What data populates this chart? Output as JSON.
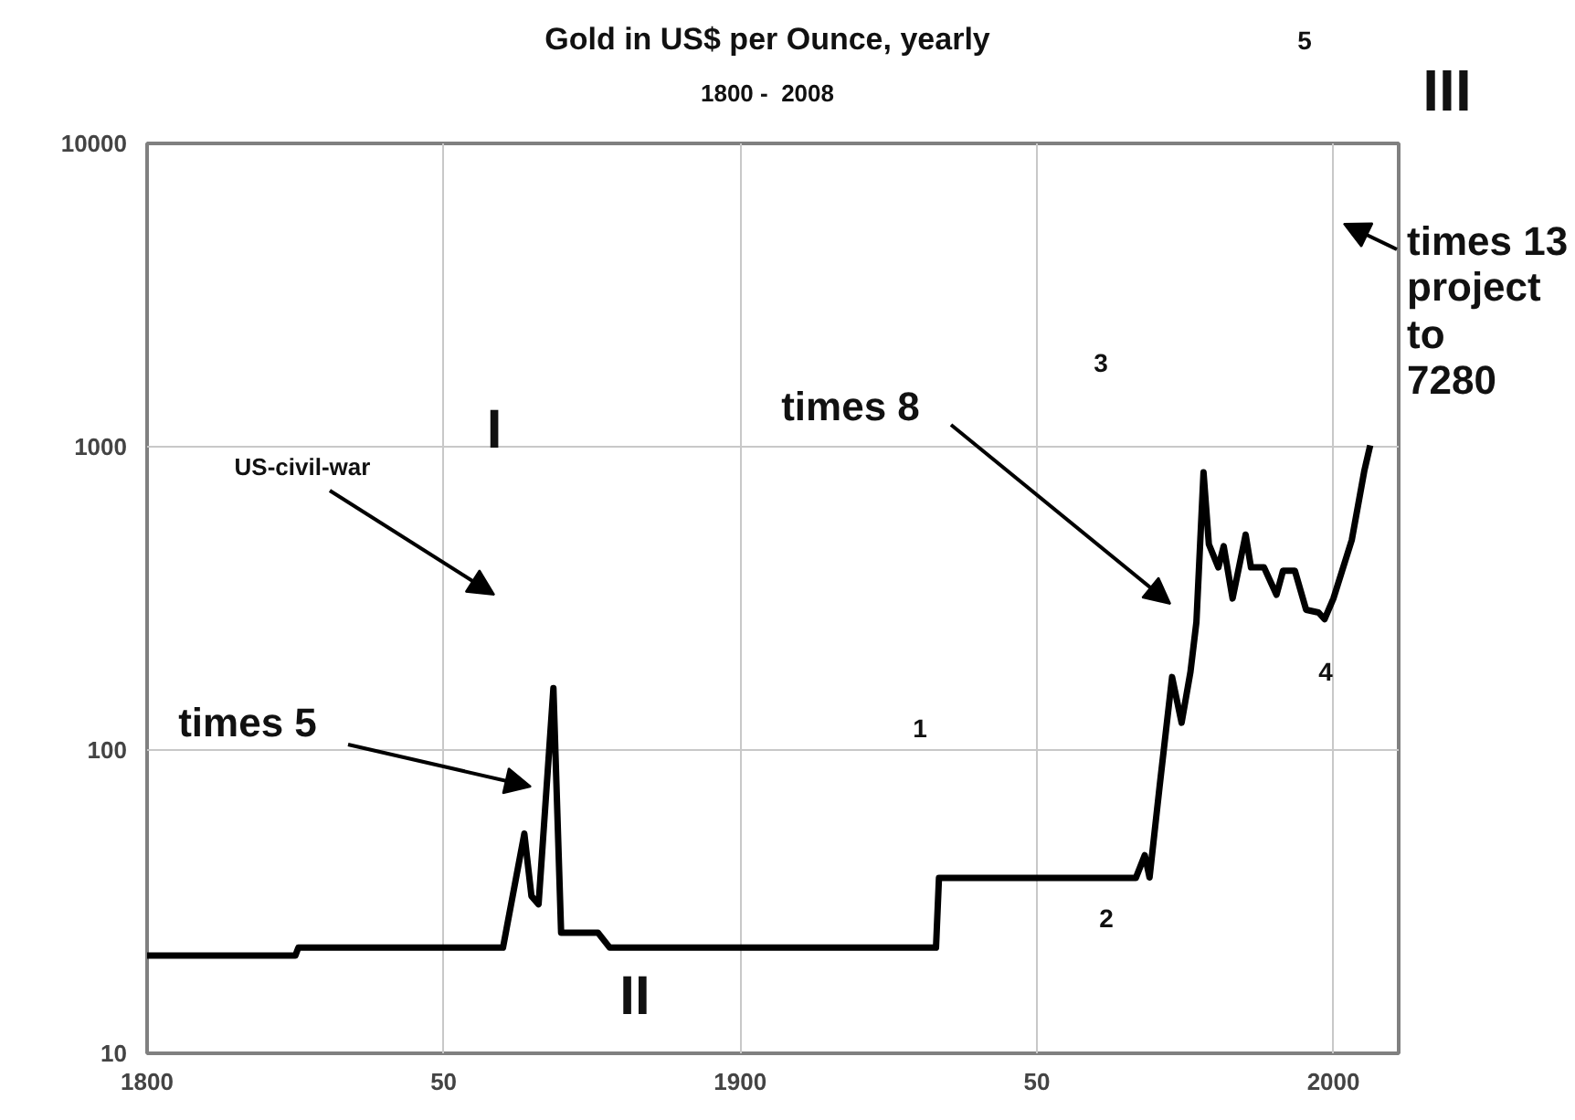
{
  "chart_data": {
    "type": "line",
    "title": "Gold in US$ per Ounce, yearly",
    "subtitle": "1800 -  2008",
    "x": [
      1800,
      1825,
      1825.5,
      1860,
      1863.6,
      1864.8,
      1866,
      1868.5,
      1869.8,
      1876,
      1878,
      1933,
      1933.5,
      1966.7,
      1968.2,
      1969,
      1970.7,
      1972.8,
      1974.4,
      1975.9,
      1976.9,
      1978.1,
      1979,
      1980.6,
      1981.5,
      1983,
      1985.2,
      1986.1,
      1988.3,
      1990.4,
      1991.5,
      1993.5,
      1995.4,
      1997.5,
      1998.5,
      2000,
      2003.1,
      2005.2,
      2006.2
    ],
    "series": [
      {
        "color": "#000000",
        "values": [
          21,
          21,
          22.3,
          22.3,
          53,
          33,
          31,
          160,
          25,
          25,
          22.3,
          22.3,
          37.9,
          37.9,
          45,
          38,
          76,
          174,
          123,
          181,
          264,
          823,
          477,
          400,
          470,
          316,
          513,
          400,
          400,
          325,
          390,
          390,
          290,
          284,
          270,
          316,
          493,
          832,
          1010
        ]
      }
    ],
    "log": "y",
    "xlim": [
      1800,
      2011
    ],
    "ylim": [
      10,
      10000
    ],
    "xticks": [
      1800,
      {
        "value": 1850,
        "label": "50"
      },
      1900,
      {
        "value": 1950,
        "label": "50"
      },
      2000
    ],
    "yticks": [
      10,
      100,
      1000,
      10000
    ],
    "grid": true,
    "line_style": "solid",
    "annotations": [
      "US-civil-war",
      "times 5",
      "times 8",
      "times 13\nproject\nto\n7280",
      "I",
      "II",
      "1",
      "2",
      "3",
      "4",
      "5",
      "III"
    ]
  }
}
